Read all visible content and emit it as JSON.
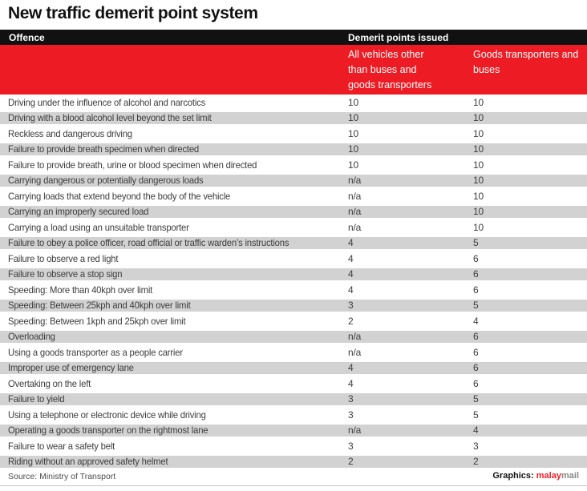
{
  "colors": {
    "red": "#ed1c24",
    "row_alt": "#d2d2d2",
    "bar_black": "#111111",
    "text": "#3c3c3c",
    "brand_gray": "#888888",
    "rule": "#c4c4c4"
  },
  "title": "New traffic demerit point system",
  "table": {
    "header": {
      "offence": "Offence",
      "points": "Demerit points issued"
    },
    "subcolumns": [
      "All vehicles other than buses and goods transporters",
      "Goods transporters and buses"
    ]
  },
  "footer": {
    "source": "Source: Ministry of Transport",
    "graphics_label": "Graphics:",
    "brand_primary": "malay",
    "brand_secondary": "mail"
  },
  "chart_data": {
    "type": "table",
    "title": "New traffic demerit point system",
    "columns": [
      "Offence",
      "All vehicles other than buses and goods transporters",
      "Goods transporters and buses"
    ],
    "rows": [
      [
        "Driving under the influence of alcohol and narcotics",
        "10",
        "10"
      ],
      [
        "Driving with a blood alcohol level beyond the set limit",
        "10",
        "10"
      ],
      [
        "Reckless and dangerous driving",
        "10",
        "10"
      ],
      [
        "Failure to provide breath specimen when directed",
        "10",
        "10"
      ],
      [
        "Failure to provide breath, urine or blood specimen when directed",
        "10",
        "10"
      ],
      [
        "Carrying dangerous or potentially dangerous loads",
        "n/a",
        "10"
      ],
      [
        "Carrying loads that extend beyond the body of the vehicle",
        "n/a",
        "10"
      ],
      [
        "Carrying an improperly secured load",
        "n/a",
        "10"
      ],
      [
        "Carrying a load using an unsuitable transporter",
        "n/a",
        "10"
      ],
      [
        "Failure to obey a police officer, road official or traffic warden’s instructions",
        "4",
        "5"
      ],
      [
        "Failure to observe a red light",
        "4",
        "6"
      ],
      [
        "Failure to observe a stop sign",
        "4",
        "6"
      ],
      [
        "Speeding: More than 40kph over limit",
        "4",
        "6"
      ],
      [
        "Speeding: Between 25kph and 40kph over limit",
        "3",
        "5"
      ],
      [
        "Speeding: Between 1kph and 25kph over limit",
        "2",
        "4"
      ],
      [
        "Overloading",
        "n/a",
        "6"
      ],
      [
        "Using a goods transporter as a people carrier",
        "n/a",
        "6"
      ],
      [
        "Improper use of emergency lane",
        "4",
        "6"
      ],
      [
        "Overtaking on the left",
        "4",
        "6"
      ],
      [
        "Failure to yield",
        "3",
        "5"
      ],
      [
        "Using a telephone or electronic device while driving",
        "3",
        "5"
      ],
      [
        "Operating a goods transporter on the rightmost lane",
        "n/a",
        "4"
      ],
      [
        "Failure to wear a safety belt",
        "3",
        "3"
      ],
      [
        "Riding without an approved safety helmet",
        "2",
        "2"
      ]
    ]
  }
}
